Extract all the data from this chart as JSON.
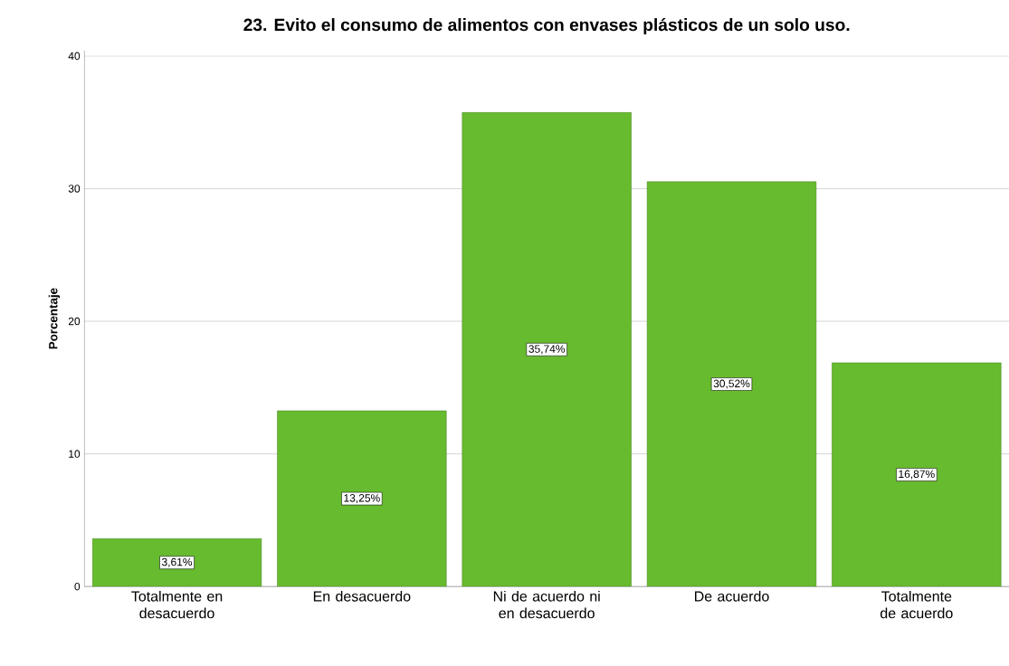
{
  "chart_data": {
    "type": "bar",
    "title": "23. Evito el consumo de alimentos con envases plásticos de un solo uso.",
    "ylabel": "Porcentaje",
    "categories": [
      "Totalmente en desacuerdo",
      "En desacuerdo",
      "Ni de acuerdo ni en desacuerdo",
      "De acuerdo",
      "Totalmente de acuerdo"
    ],
    "values": [
      3.61,
      13.25,
      35.74,
      30.52,
      16.87
    ],
    "value_labels": [
      "3,61%",
      "13,25%",
      "35,74%",
      "30,52%",
      "16,87%"
    ],
    "color": "#66bb2e",
    "ylim": [
      0,
      40.4
    ],
    "yticks": [
      0,
      10,
      20,
      30,
      40
    ],
    "grid": "y"
  }
}
